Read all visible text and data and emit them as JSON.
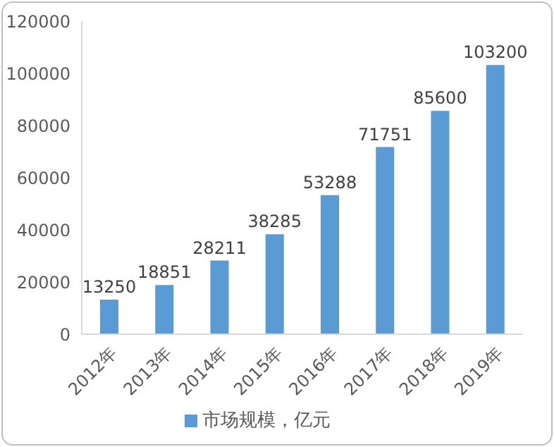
{
  "chart_data": {
    "type": "bar",
    "categories": [
      "2012年",
      "2013年",
      "2014年",
      "2015年",
      "2016年",
      "2017年",
      "2018年",
      "2019年"
    ],
    "series": [
      {
        "name": "市场规模，亿元",
        "color": "#5b9bd5",
        "values": [
          13250,
          18851,
          28211,
          38285,
          53288,
          71751,
          85600,
          103200
        ]
      }
    ],
    "ylim": [
      0,
      120000
    ],
    "yticks": [
      0,
      20000,
      40000,
      60000,
      80000,
      100000,
      120000
    ],
    "data_labels": true,
    "legend": "bottom",
    "grid": false
  }
}
